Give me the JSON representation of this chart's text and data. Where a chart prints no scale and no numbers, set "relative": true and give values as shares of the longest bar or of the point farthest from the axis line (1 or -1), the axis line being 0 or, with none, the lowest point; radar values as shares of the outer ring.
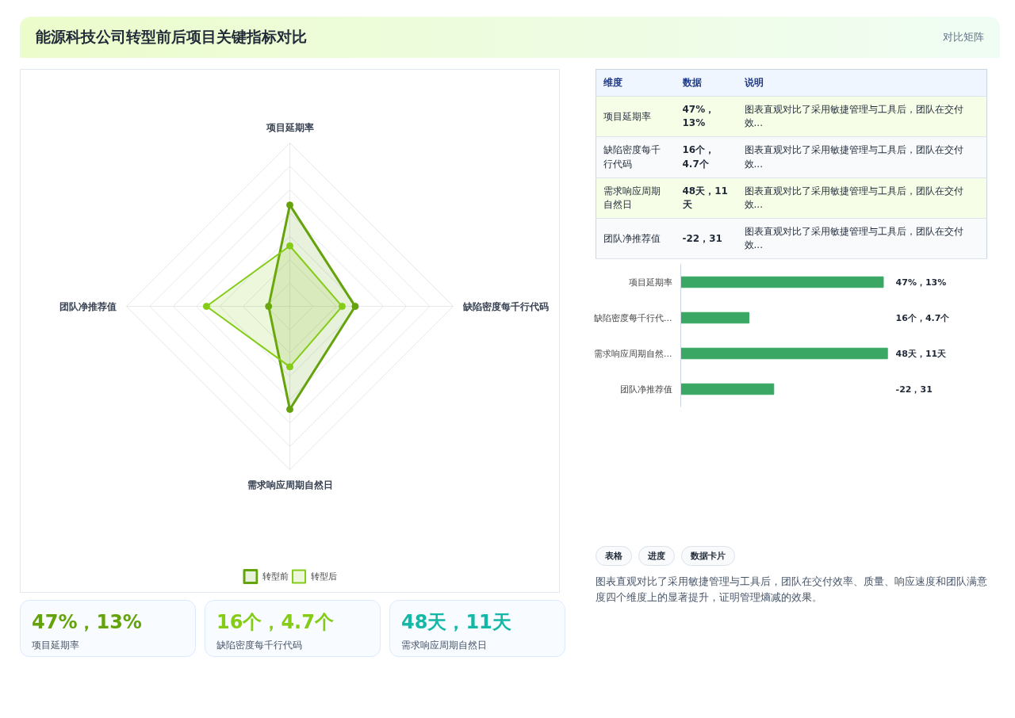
{
  "chart_data": [
    {
      "type": "other",
      "title": "能源科技公司转型前后项目关键指标对比",
      "annotations": [
        "对比矩阵"
      ]
    },
    {
      "type": "radar",
      "relative": true,
      "grid": true,
      "legend": "bottom",
      "marker": "circle",
      "categories": [
        "项目延期率",
        "缺陷密度每千行代码",
        "需求响应周期自然日",
        "团队净推荐值"
      ],
      "series": [
        {
          "name": "转型前",
          "color": "#65a30d",
          "values": [
            0.62,
            0.4,
            0.63,
            0.13
          ]
        },
        {
          "name": "转型后",
          "color": "#84cc16",
          "values": [
            0.37,
            0.32,
            0.37,
            0.51
          ]
        }
      ]
    },
    {
      "type": "other",
      "annotations": [
        "维度",
        "数据",
        "说明",
        "项目延期率",
        "47%，13%",
        "图表直观对比了采用敏捷管理与工具后，团队在交付效...",
        "缺陷密度每千行代码",
        "16个，4.7个",
        "图表直观对比了采用敏捷管理与工具后，团队在交付效...",
        "需求响应周期自然日",
        "48天，11天",
        "图表直观对比了采用敏捷管理与工具后，团队在交付效...",
        "团队净推荐值",
        "-22，31",
        "图表直观对比了采用敏捷管理与工具后，团队在交付效..."
      ]
    },
    {
      "type": "bar",
      "orientation": "horizontal",
      "relative": true,
      "color": "#3aa864",
      "categories": [
        "项目延期率",
        "缺陷密度每千行代...",
        "需求响应周期自然...",
        "团队净推荐值"
      ],
      "values": [
        0.98,
        0.33,
        1,
        0.45
      ],
      "annotations": [
        "47%，13%",
        "16个，4.7个",
        "48天，11天",
        "-22，31"
      ]
    },
    {
      "type": "other",
      "colors": [
        "#65a30d",
        "#84cc16",
        "#14b8a6"
      ],
      "annotations": [
        "47%，13%",
        "项目延期率",
        "16个，4.7个",
        "缺陷密度每千行代码",
        "48天，11天",
        "需求响应周期自然日"
      ]
    },
    {
      "type": "other",
      "annotations": [
        "表格",
        "进度",
        "数据卡片",
        "图表直观对比了采用敏捷管理与工具后，团队在交付效率、质量、响应速度和团队满意度四个维度上的显著提升，证明管理熵减的效果。"
      ]
    }
  ]
}
